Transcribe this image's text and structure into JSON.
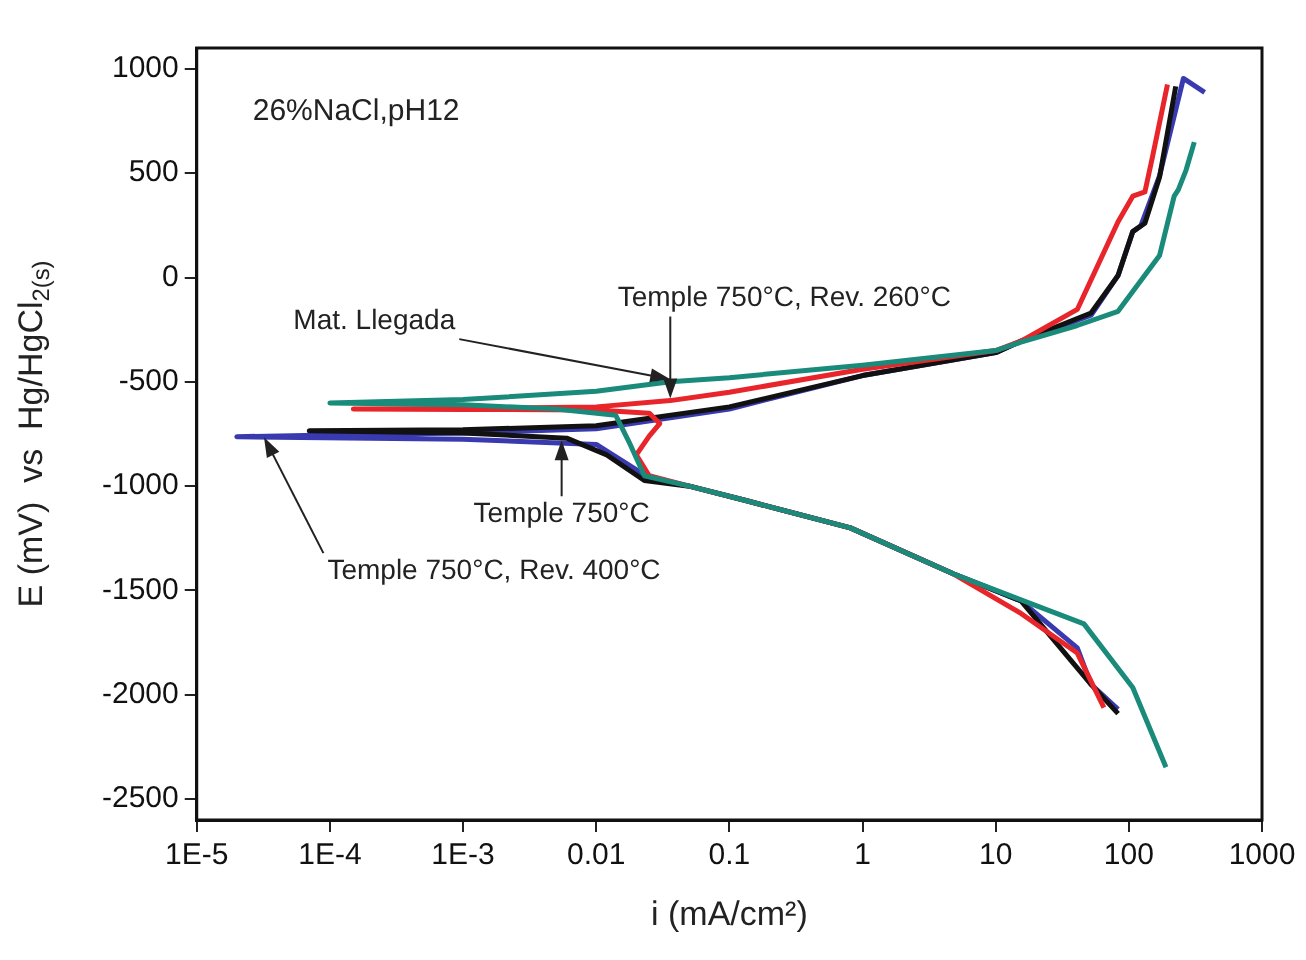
{
  "chart_data": {
    "type": "line",
    "xlabel": "i (mA/cm²)",
    "ylabel": "E (mV)  vs  Hg/HgCl$_{2(s)}$",
    "log": "x",
    "xlim": [
      1e-05,
      1000
    ],
    "xticks": [
      {
        "value": 1e-05,
        "label": "1E-5"
      },
      {
        "value": 0.0001,
        "label": "1E-4"
      },
      {
        "value": 0.001,
        "label": "1E-3"
      },
      0.01,
      0.1,
      1,
      10,
      100,
      1000
    ],
    "ylim": [
      -2600,
      1100
    ],
    "yticks": [
      -2500,
      -2000,
      -1500,
      -1000,
      -500,
      0,
      500,
      1000
    ],
    "grid": false,
    "series": [
      {
        "color": "#1a8a7a",
        "x": [
          190,
          107,
          46,
          15.5,
          4.8,
          0.81,
          0.135,
          0.05,
          0.023,
          0.018,
          0.014,
          0.005,
          0.001,
          0.0001,
          0.001,
          0.01,
          0.036,
          0.1,
          1,
          10,
          15.5,
          41,
          83,
          170,
          219,
          235,
          269,
          310
        ],
        "values": [
          -2347,
          -1965,
          -1660,
          -1545,
          -1420,
          -1200,
          -1070,
          -1000,
          -950,
          -800,
          -660,
          -630,
          -610,
          -601,
          -585,
          -545,
          -500,
          -480,
          -420,
          -350,
          -310,
          -230,
          -162,
          105,
          390,
          420,
          515,
          649
        ]
      },
      {
        "color": "#e8252a",
        "x": [
          65,
          41,
          15.5,
          4.8,
          0.81,
          0.135,
          0.05,
          0.025,
          0.02,
          0.025,
          0.03,
          0.025,
          0.01,
          0.001,
          0.00015,
          0.001,
          0.01,
          0.036,
          0.1,
          1,
          10,
          15.5,
          41,
          83,
          107,
          132,
          151,
          195
        ],
        "values": [
          -2061,
          -1800,
          -1610,
          -1420,
          -1200,
          -1070,
          -1000,
          -950,
          -850,
          -760,
          -700,
          -650,
          -635,
          -632,
          -630,
          -628,
          -620,
          -590,
          -550,
          -440,
          -350,
          -305,
          -153,
          267,
          390,
          410,
          582,
          925
        ]
      },
      {
        "color": "#111111",
        "x": [
          83,
          52,
          15.5,
          4.8,
          0.81,
          0.135,
          0.05,
          0.023,
          0.012,
          0.006,
          0.001,
          7e-05,
          0.001,
          0.01,
          0.1,
          1,
          10,
          15.5,
          52,
          83,
          107,
          132,
          170,
          225
        ],
        "values": [
          -2090,
          -1950,
          -1550,
          -1420,
          -1200,
          -1070,
          -1000,
          -973,
          -850,
          -770,
          -745,
          -735,
          -730,
          -710,
          -620,
          -470,
          -360,
          -305,
          -170,
          10,
          220,
          260,
          480,
          916
        ]
      },
      {
        "color": "#3a3ab0",
        "x": [
          83,
          52,
          41,
          15.5,
          4.8,
          0.81,
          0.135,
          0.05,
          0.025,
          0.01,
          0.001,
          2e-05,
          0.0001,
          0.001,
          0.01,
          0.1,
          1,
          10,
          15.5,
          52,
          83,
          107,
          123,
          170,
          219,
          257,
          371
        ],
        "values": [
          -2070,
          -1950,
          -1775,
          -1550,
          -1420,
          -1200,
          -1070,
          -1000,
          -960,
          -800,
          -775,
          -763,
          -755,
          -745,
          -725,
          -630,
          -470,
          -360,
          -305,
          -181,
          10,
          220,
          248,
          487,
          773,
          954,
          887
        ]
      }
    ],
    "annotations": [
      "26%NaCl,pH12",
      {
        "text": "Mat. Llegada",
        "x": 0.036,
        "y": -487
      },
      {
        "text": "Temple 750°C, Rev. 260°C",
        "x": 0.036,
        "y": -580
      },
      {
        "text": "Temple 750°C",
        "x": 0.0055,
        "y": -780
      },
      {
        "text": "Temple 750°C, Rev. 400°C",
        "x": 3.2e-05,
        "y": -765
      }
    ]
  }
}
